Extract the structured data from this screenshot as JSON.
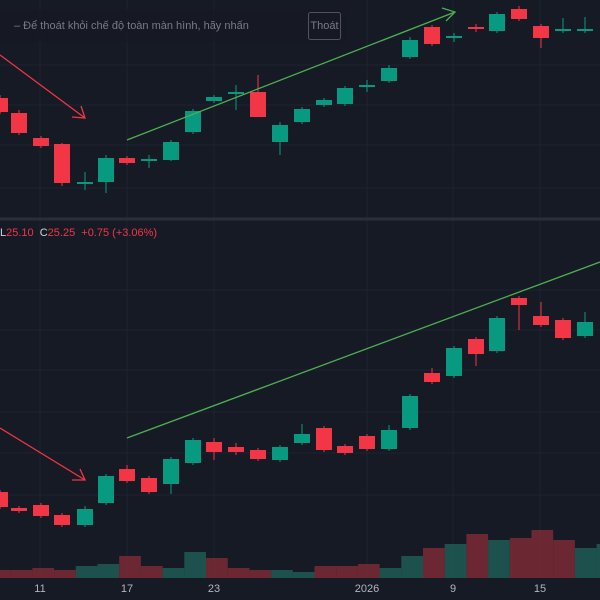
{
  "banner": {
    "message": "– Để thoát khỏi chế độ toàn màn hình, hãy nhấn",
    "button": "Thoát"
  },
  "legend": {
    "ohlc": [
      {
        "label": "L",
        "value": "25.10"
      },
      {
        "label": "C",
        "value": "25.25"
      }
    ],
    "change": "+0.75 (+3.06%)"
  },
  "time_axis": [
    "11",
    "17",
    "23",
    "2026",
    "9",
    "15"
  ]
}
